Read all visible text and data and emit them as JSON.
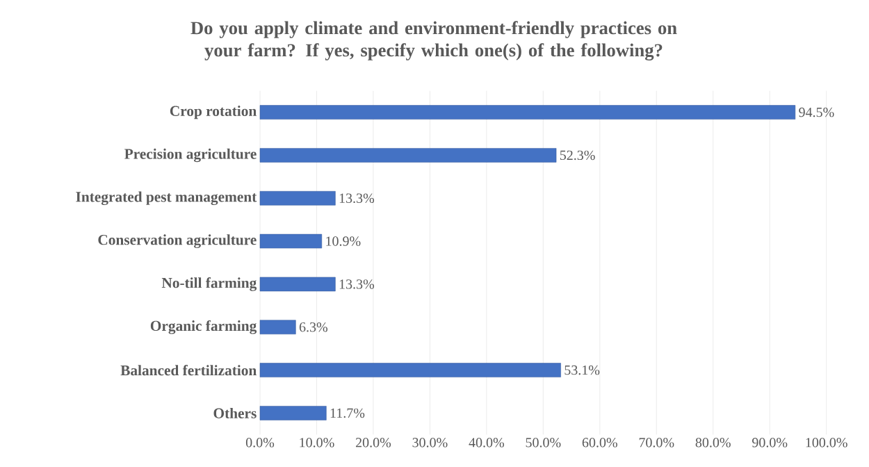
{
  "chart_data": {
    "type": "bar",
    "orientation": "horizontal",
    "title": "Do you apply climate and environment-friendly practices on your farm? If yes, specify which one(s) of the following?",
    "categories": [
      "Crop rotation",
      "Precision agriculture",
      "Integrated pest management",
      "Conservation agriculture",
      "No-till farming",
      "Organic farming",
      "Balanced fertilization",
      "Others"
    ],
    "values": [
      94.5,
      52.3,
      13.3,
      10.9,
      13.3,
      6.3,
      53.1,
      11.7
    ],
    "value_labels": [
      "94.5%",
      "52.3%",
      "13.3%",
      "10.9%",
      "13.3%",
      "6.3%",
      "53.1%",
      "11.7%"
    ],
    "color": "#4472c4",
    "xlim": [
      0,
      100
    ],
    "xticks": [
      {
        "value": 0,
        "label": "0.0%"
      },
      {
        "value": 10,
        "label": "10.0%"
      },
      {
        "value": 20,
        "label": "20.0%"
      },
      {
        "value": 30,
        "label": "30.0%"
      },
      {
        "value": 40,
        "label": "40.0%"
      },
      {
        "value": 50,
        "label": "50.0%"
      },
      {
        "value": 60,
        "label": "60.0%"
      },
      {
        "value": 70,
        "label": "70.0%"
      },
      {
        "value": 80,
        "label": "80.0%"
      },
      {
        "value": 90,
        "label": "90.0%"
      },
      {
        "value": 100,
        "label": "100.0%"
      }
    ],
    "grid": "x"
  }
}
